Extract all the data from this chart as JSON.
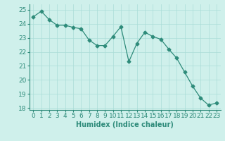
{
  "x": [
    0,
    1,
    2,
    3,
    4,
    5,
    6,
    7,
    8,
    9,
    10,
    11,
    12,
    13,
    14,
    15,
    16,
    17,
    18,
    19,
    20,
    21,
    22,
    23
  ],
  "y": [
    24.5,
    24.9,
    24.3,
    23.9,
    23.9,
    23.75,
    23.65,
    22.85,
    22.45,
    22.45,
    23.1,
    23.8,
    21.3,
    22.6,
    23.4,
    23.1,
    22.9,
    22.2,
    21.55,
    20.55,
    19.55,
    18.7,
    18.2,
    18.35
  ],
  "line_color": "#2e8b7a",
  "marker": "D",
  "marker_size": 2.5,
  "bg_color": "#cff0eb",
  "grid_color": "#aaddd7",
  "xlabel": "Humidex (Indice chaleur)",
  "xlim": [
    -0.5,
    23.5
  ],
  "ylim": [
    17.85,
    25.4
  ],
  "yticks": [
    18,
    19,
    20,
    21,
    22,
    23,
    24,
    25
  ],
  "xticks": [
    0,
    1,
    2,
    3,
    4,
    5,
    6,
    7,
    8,
    9,
    10,
    11,
    12,
    13,
    14,
    15,
    16,
    17,
    18,
    19,
    20,
    21,
    22,
    23
  ],
  "xlabel_fontsize": 7,
  "tick_fontsize": 6.5
}
